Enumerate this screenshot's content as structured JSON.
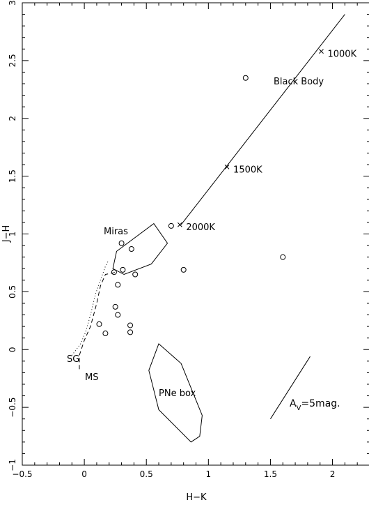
{
  "chart_data": {
    "type": "scatter",
    "xlabel": "H−K",
    "ylabel": "J−H",
    "xlim": [
      -0.5,
      2.3
    ],
    "ylim": [
      -1,
      3
    ],
    "x_ticks": [
      "−0.5",
      "0",
      "0.5",
      "1",
      "1.5",
      "2"
    ],
    "x_tick_values": [
      -0.5,
      0,
      0.5,
      1,
      1.5,
      2
    ],
    "y_ticks": [
      "−1",
      "−0.5",
      "0",
      "0.5",
      "1",
      "1.5",
      "2",
      "2.5",
      "3"
    ],
    "y_tick_values": [
      -1,
      -0.5,
      0,
      0.5,
      1,
      1.5,
      2,
      2.5,
      3
    ],
    "observed_points": [
      {
        "x": 1.3,
        "y": 2.35
      },
      {
        "x": 0.7,
        "y": 1.07
      },
      {
        "x": 0.3,
        "y": 0.92
      },
      {
        "x": 0.38,
        "y": 0.87
      },
      {
        "x": 1.6,
        "y": 0.8
      },
      {
        "x": 0.8,
        "y": 0.69
      },
      {
        "x": 0.31,
        "y": 0.69
      },
      {
        "x": 0.24,
        "y": 0.67
      },
      {
        "x": 0.41,
        "y": 0.65
      },
      {
        "x": 0.27,
        "y": 0.56
      },
      {
        "x": 0.25,
        "y": 0.37
      },
      {
        "x": 0.27,
        "y": 0.3
      },
      {
        "x": 0.12,
        "y": 0.22
      },
      {
        "x": 0.37,
        "y": 0.21
      },
      {
        "x": 0.17,
        "y": 0.14
      },
      {
        "x": 0.37,
        "y": 0.15
      }
    ],
    "black_body": {
      "label": "Black Body",
      "line": [
        [
          0.78,
          1.08
        ],
        [
          2.1,
          2.9
        ]
      ],
      "markers": [
        {
          "x": 0.77,
          "y": 1.08,
          "label": "2000K"
        },
        {
          "x": 1.15,
          "y": 1.58,
          "label": "1500K"
        },
        {
          "x": 1.91,
          "y": 2.58,
          "label": "1000K"
        }
      ]
    },
    "miras_region": {
      "label": "Miras",
      "polygon": [
        [
          0.23,
          0.7
        ],
        [
          0.26,
          0.85
        ],
        [
          0.56,
          1.09
        ],
        [
          0.67,
          0.92
        ],
        [
          0.54,
          0.74
        ],
        [
          0.32,
          0.65
        ]
      ]
    },
    "pne_box": {
      "label": "PNe box",
      "polygon": [
        [
          0.6,
          0.05
        ],
        [
          0.78,
          -0.12
        ],
        [
          0.95,
          -0.57
        ],
        [
          0.93,
          -0.75
        ],
        [
          0.86,
          -0.8
        ],
        [
          0.6,
          -0.52
        ],
        [
          0.52,
          -0.18
        ]
      ]
    },
    "main_sequence": {
      "label": "MS",
      "line": [
        [
          -0.04,
          -0.17
        ],
        [
          -0.04,
          -0.05
        ],
        [
          0.0,
          0.08
        ],
        [
          0.05,
          0.2
        ],
        [
          0.1,
          0.4
        ],
        [
          0.13,
          0.55
        ],
        [
          0.17,
          0.65
        ],
        [
          0.26,
          0.67
        ]
      ]
    },
    "supergiants": {
      "label": "SG",
      "line": [
        [
          -0.1,
          -0.05
        ],
        [
          -0.03,
          0.05
        ],
        [
          0.01,
          0.15
        ],
        [
          0.05,
          0.3
        ],
        [
          0.09,
          0.48
        ],
        [
          0.14,
          0.63
        ],
        [
          0.17,
          0.72
        ],
        [
          0.19,
          0.76
        ]
      ]
    },
    "extinction_vector": {
      "label_main": "A",
      "label_sub": "V",
      "label_rest": "=5mag.",
      "line": [
        [
          1.5,
          -0.6
        ],
        [
          1.82,
          -0.06
        ]
      ]
    }
  }
}
